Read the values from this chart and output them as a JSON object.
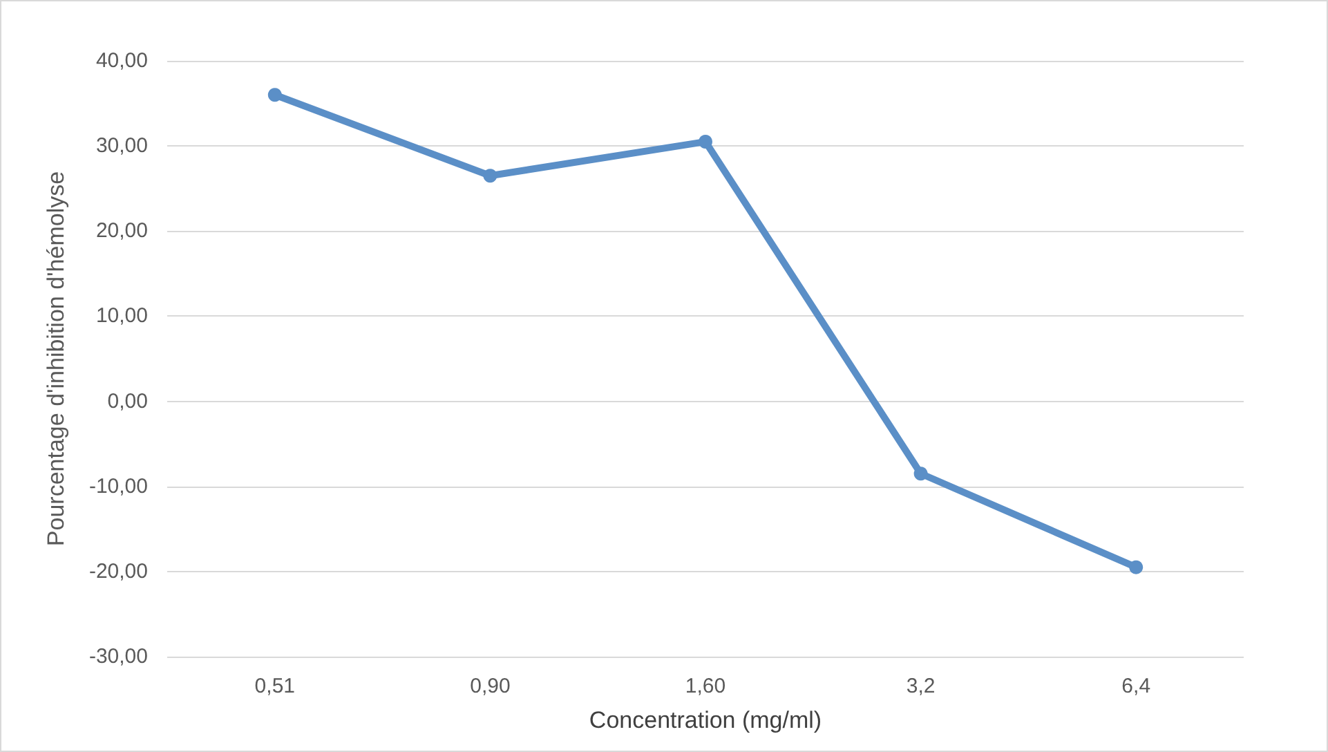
{
  "chart_data": {
    "type": "line",
    "xlabel": "Concentration (mg/ml)",
    "ylabel": "Pourcentage d'inhibition d'hémolyse",
    "categories": [
      "0,51",
      "0,90",
      "1,60",
      "3,2",
      "6,4"
    ],
    "series": [
      {
        "color": "#5b8fc7",
        "values": [
          36,
          26.5,
          30.5,
          -8.5,
          -19.5
        ]
      }
    ],
    "ylim": [
      -30,
      40
    ],
    "yticks": [
      {
        "value": -30,
        "label": "-30,00"
      },
      {
        "value": -20,
        "label": "-20,00"
      },
      {
        "value": -10,
        "label": "-10,00"
      },
      {
        "value": 0,
        "label": "0,00"
      },
      {
        "value": 10,
        "label": "10,00"
      },
      {
        "value": 20,
        "label": "20,00"
      },
      {
        "value": 30,
        "label": "30,00"
      },
      {
        "value": 40,
        "label": "40,00"
      }
    ],
    "grid": "y",
    "marker": "circle",
    "line_style": "solid"
  }
}
